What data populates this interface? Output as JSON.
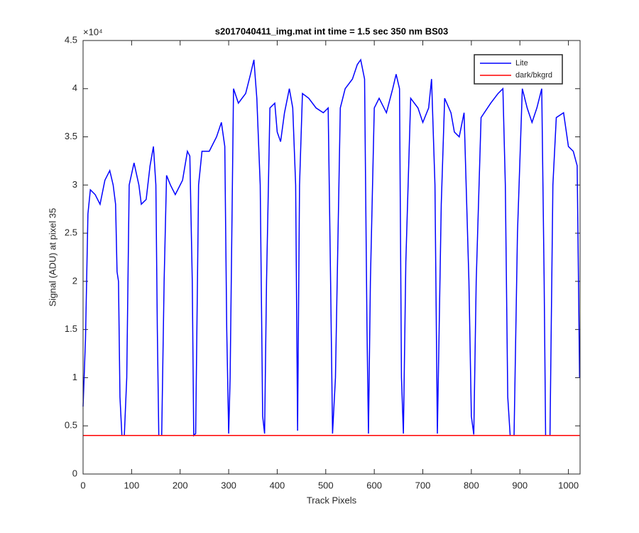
{
  "chart_data": {
    "type": "line",
    "title": "s2017040411_img.mat int time = 1.5 sec  350 nm BS03",
    "x_label": "Track Pixels",
    "y_label": "Signal (ADU) at pixel 35",
    "y_exponent": "×10⁴",
    "xlim": [
      0,
      1024
    ],
    "ylim": [
      0,
      45000
    ],
    "xticks": [
      0,
      100,
      200,
      300,
      400,
      500,
      600,
      700,
      800,
      900,
      1000
    ],
    "yticks": [
      {
        "value": 0,
        "label": "0"
      },
      {
        "value": 5000,
        "label": "0.5"
      },
      {
        "value": 10000,
        "label": "1"
      },
      {
        "value": 15000,
        "label": "1.5"
      },
      {
        "value": 20000,
        "label": "2"
      },
      {
        "value": 25000,
        "label": "2.5"
      },
      {
        "value": 30000,
        "label": "3"
      },
      {
        "value": 35000,
        "label": "3.5"
      },
      {
        "value": 40000,
        "label": "4"
      },
      {
        "value": 45000,
        "label": "4.5"
      }
    ],
    "legend": "upper right",
    "series": [
      {
        "name": "Lite",
        "color": "#0000ff",
        "x": [
          0,
          5,
          10,
          15,
          25,
          35,
          45,
          55,
          62,
          67,
          70,
          73,
          76,
          80,
          85,
          90,
          95,
          105,
          115,
          120,
          130,
          138,
          145,
          150,
          153,
          156,
          162,
          167,
          172,
          180,
          190,
          205,
          215,
          220,
          225,
          228,
          232,
          238,
          245,
          260,
          275,
          285,
          292,
          296,
          300,
          303,
          310,
          320,
          335,
          345,
          352,
          358,
          365,
          370,
          374,
          378,
          385,
          395,
          400,
          407,
          415,
          425,
          432,
          438,
          442,
          446,
          452,
          465,
          480,
          495,
          505,
          510,
          514,
          520,
          530,
          540,
          555,
          565,
          572,
          580,
          585,
          588,
          592,
          600,
          610,
          625,
          638,
          645,
          652,
          656,
          660,
          665,
          675,
          690,
          700,
          712,
          718,
          725,
          730,
          738,
          745,
          758,
          765,
          775,
          785,
          795,
          800,
          805,
          810,
          820,
          840,
          855,
          865,
          870,
          875,
          880,
          888,
          895,
          905,
          915,
          925,
          935,
          945,
          950,
          953,
          962,
          968,
          975,
          990,
          1000,
          1010,
          1018,
          1023
        ],
        "values": [
          7000,
          14000,
          27000,
          29500,
          29000,
          28000,
          30500,
          31500,
          30000,
          28000,
          21000,
          20000,
          8000,
          4000,
          4000,
          10000,
          30000,
          32300,
          30000,
          28000,
          28500,
          32000,
          34000,
          30000,
          15000,
          4000,
          4000,
          20000,
          31000,
          30000,
          29000,
          30500,
          33500,
          33000,
          20000,
          4000,
          4200,
          30000,
          33500,
          33500,
          35000,
          36500,
          34000,
          15000,
          4200,
          10000,
          40000,
          38500,
          39500,
          41500,
          43000,
          39000,
          30000,
          6000,
          4200,
          20000,
          38000,
          38500,
          35500,
          34500,
          37500,
          40000,
          38000,
          30000,
          4500,
          30000,
          39500,
          39000,
          38000,
          37500,
          38000,
          20000,
          4200,
          10000,
          38000,
          40000,
          41000,
          42500,
          43000,
          41000,
          15000,
          4200,
          20000,
          38000,
          39000,
          37500,
          40000,
          41500,
          40000,
          10000,
          4200,
          22000,
          39000,
          38000,
          36500,
          38000,
          41000,
          30000,
          4200,
          28000,
          39000,
          37500,
          35500,
          35000,
          37500,
          20000,
          6000,
          4100,
          20000,
          37000,
          38500,
          39500,
          40000,
          30000,
          8000,
          4000,
          4000,
          25000,
          40000,
          38000,
          36500,
          38000,
          40000,
          20000,
          4000,
          4000,
          30000,
          37000,
          37500,
          34000,
          33500,
          32000,
          10000
        ]
      },
      {
        "name": "dark/bkgrd",
        "color": "#ff0000",
        "x": [
          0,
          256,
          512,
          768,
          1023
        ],
        "values": [
          4000,
          4000,
          4000,
          4000,
          4000
        ]
      }
    ]
  }
}
